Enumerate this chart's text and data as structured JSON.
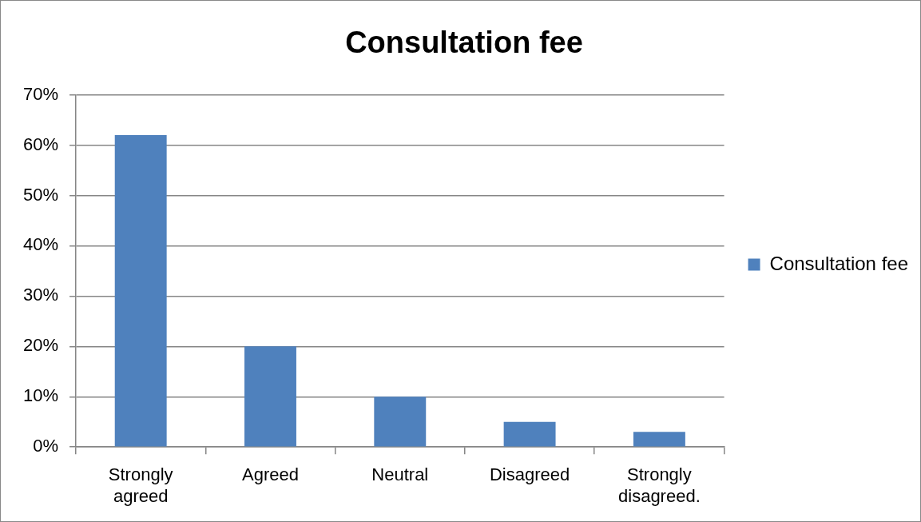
{
  "chart_data": {
    "type": "bar",
    "title": "Consultation fee",
    "categories": [
      "Strongly agreed",
      "Agreed",
      "Neutral",
      "Disagreed",
      "Strongly disagreed."
    ],
    "series": [
      {
        "name": "Consultation fee",
        "color": "#4f81bd",
        "values": [
          62,
          20,
          10,
          5,
          3
        ]
      }
    ],
    "ylim": [
      0,
      70
    ],
    "yticks": [
      {
        "value": 0,
        "label": "0%"
      },
      {
        "value": 10,
        "label": "10%"
      },
      {
        "value": 20,
        "label": "20%"
      },
      {
        "value": 30,
        "label": "30%"
      },
      {
        "value": 40,
        "label": "40%"
      },
      {
        "value": 50,
        "label": "50%"
      },
      {
        "value": 60,
        "label": "60%"
      },
      {
        "value": 70,
        "label": "70%"
      }
    ],
    "grid": "y",
    "legend": "right"
  }
}
